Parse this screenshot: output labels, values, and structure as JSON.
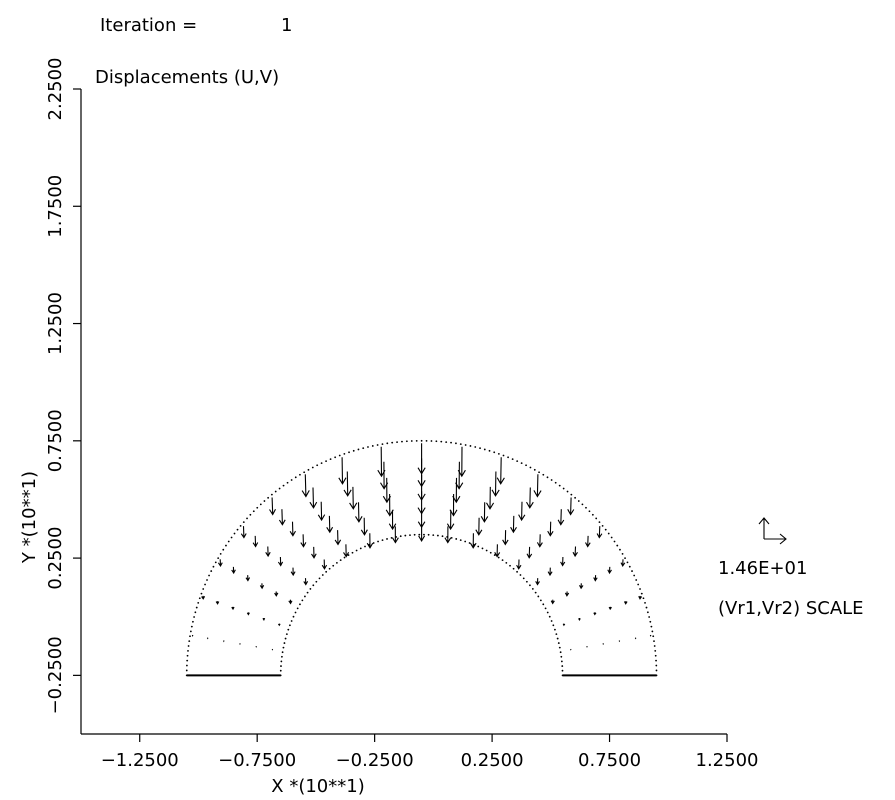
{
  "header": {
    "iteration_label": "Iteration =",
    "iteration_value": "1",
    "field_label": "Displacements (U,V)"
  },
  "legend": {
    "scale_value": "1.46E+01",
    "scale_label": "(Vr1,Vr2) SCALE"
  },
  "chart_data": {
    "type": "vector-field",
    "title": "",
    "xlabel": "X *(10**1)",
    "ylabel": "Y *(10**1)",
    "xlim": [
      -1.5,
      1.25
    ],
    "ylim": [
      -0.5,
      2.25
    ],
    "x_ticks": [
      "-1.2500",
      "-0.7500",
      "-0.2500",
      "0.2500",
      "0.7500",
      "1.2500"
    ],
    "x_tick_values": [
      -1.25,
      -0.75,
      -0.25,
      0.25,
      0.75,
      1.25
    ],
    "y_ticks": [
      "-0.2500",
      "0.2500",
      "0.7500",
      "1.2500",
      "1.7500",
      "2.2500"
    ],
    "y_tick_values": [
      -0.25,
      0.25,
      0.75,
      1.25,
      1.75,
      2.25
    ],
    "geometry": {
      "center": [
        -0.05,
        -0.25
      ],
      "inner_radius": 0.6,
      "outer_radius": 1.0,
      "bottom_y": -0.25
    },
    "vector_field": {
      "radii": [
        0.645,
        0.715,
        0.785,
        0.855,
        0.925,
        0.99
      ],
      "angles_deg": [
        170,
        160,
        150,
        140,
        130,
        120,
        110,
        100,
        90,
        80,
        70,
        60,
        50,
        40,
        30,
        20,
        10
      ],
      "peak_magnitude": 0.13,
      "direction": "downward"
    }
  }
}
